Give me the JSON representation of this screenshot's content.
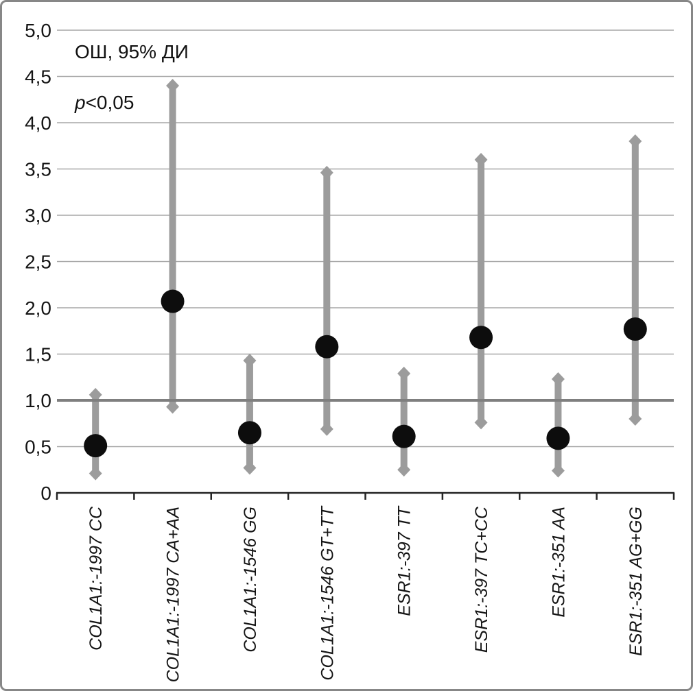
{
  "chart_data": {
    "type": "scatter",
    "subtype": "forest-plot-odds-ratio",
    "annotations": {
      "or_ci": "ОШ, 95% ДИ",
      "p_italic": "p",
      "p_rest": "<0,05"
    },
    "y_axis": {
      "min": 0,
      "max": 5,
      "step": 0.5,
      "tick_labels": [
        "0",
        "0,5",
        "1,0",
        "1,5",
        "2,0",
        "2,5",
        "3,0",
        "3,5",
        "4,0",
        "4,5",
        "5,0"
      ]
    },
    "x_axis": {
      "tick_marks": "category-boundaries"
    },
    "reference_line": 1.0,
    "grid": "horizontal",
    "legend": "none",
    "categories": [
      "COL1A1:-1997 CC",
      "COL1A1:-1997 CA+AA",
      "COL1A1:-1546 GG",
      "COL1A1:-1546 GT+TT",
      "ESR1:-397 TT",
      "ESR1:-397 TC+CC",
      "ESR1:-351 AA",
      "ESR1:-351 AG+GG"
    ],
    "points": [
      {
        "or": 0.51,
        "ci_low": 0.21,
        "ci_high": 1.06
      },
      {
        "or": 2.07,
        "ci_low": 0.93,
        "ci_high": 4.4
      },
      {
        "or": 0.65,
        "ci_low": 0.27,
        "ci_high": 1.43
      },
      {
        "or": 1.58,
        "ci_low": 0.69,
        "ci_high": 3.46
      },
      {
        "or": 0.61,
        "ci_low": 0.25,
        "ci_high": 1.29
      },
      {
        "or": 1.68,
        "ci_low": 0.76,
        "ci_high": 3.6
      },
      {
        "or": 0.59,
        "ci_low": 0.24,
        "ci_high": 1.23
      },
      {
        "or": 1.77,
        "ci_low": 0.8,
        "ci_high": 3.8
      }
    ],
    "colors": {
      "marker": "#0d0d0d",
      "error_bar": "#9c9c9c",
      "gridline": "#a7a7a7",
      "reference_line": "#7f7f7f",
      "axis": "#242424",
      "text": "#151515",
      "border": "#878787",
      "background": "#ffffff"
    }
  }
}
